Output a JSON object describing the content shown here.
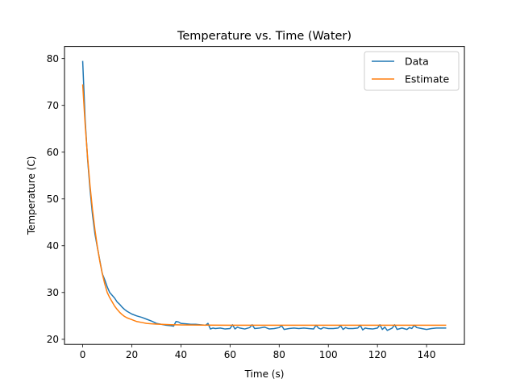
{
  "chart_data": {
    "type": "line",
    "title": "Temperature vs. Time (Water)",
    "xlabel": "Time (s)",
    "ylabel": "Temperature (C)",
    "xlim": [
      -7.4,
      155.4
    ],
    "ylim": [
      18.9,
      82.6
    ],
    "xticks": [
      0,
      20,
      40,
      60,
      80,
      100,
      120,
      140
    ],
    "yticks": [
      20,
      30,
      40,
      50,
      60,
      70,
      80
    ],
    "grid": false,
    "legend_position": "top-right",
    "series": [
      {
        "name": "Data",
        "color": "#1f77b4",
        "x": [
          0,
          1,
          2,
          3,
          4,
          5,
          6,
          7,
          8,
          9,
          10,
          11,
          12,
          13,
          14,
          15,
          16,
          17,
          18,
          19,
          20,
          22,
          24,
          26,
          28,
          30,
          32,
          34,
          36,
          37,
          38,
          39,
          40,
          42,
          44,
          46,
          48,
          50,
          51,
          52,
          53,
          54,
          56,
          58,
          60,
          61,
          62,
          63,
          64,
          66,
          68,
          69,
          70,
          72,
          74,
          76,
          78,
          80,
          81,
          82,
          84,
          86,
          88,
          90,
          92,
          94,
          95,
          96,
          97,
          98,
          100,
          102,
          104,
          105,
          106,
          107,
          108,
          110,
          112,
          113,
          114,
          115,
          116,
          118,
          120,
          121,
          122,
          123,
          124,
          126,
          127,
          128,
          130,
          132,
          133,
          134,
          135,
          136,
          138,
          140,
          142,
          144,
          146,
          148
        ],
        "y": [
          79.5,
          67.0,
          58.5,
          52.0,
          46.6,
          42.5,
          39.6,
          36.8,
          34.0,
          32.7,
          31.2,
          30.0,
          29.4,
          28.8,
          28.0,
          27.5,
          26.9,
          26.4,
          26.0,
          25.7,
          25.4,
          25.0,
          24.7,
          24.3,
          23.9,
          23.4,
          23.2,
          23.0,
          22.9,
          22.8,
          23.8,
          23.7,
          23.4,
          23.3,
          23.2,
          23.2,
          23.1,
          23.0,
          23.4,
          22.2,
          22.4,
          22.3,
          22.4,
          22.2,
          22.3,
          23.1,
          22.2,
          22.6,
          22.4,
          22.2,
          22.5,
          23.1,
          22.3,
          22.4,
          22.6,
          22.2,
          22.3,
          22.5,
          22.9,
          22.1,
          22.3,
          22.4,
          22.3,
          22.4,
          22.3,
          22.2,
          23.0,
          22.4,
          22.2,
          22.5,
          22.3,
          22.3,
          22.4,
          22.9,
          22.1,
          22.5,
          22.3,
          22.3,
          22.4,
          23.0,
          22.0,
          22.4,
          22.3,
          22.2,
          22.4,
          23.1,
          22.1,
          22.6,
          21.9,
          22.4,
          23.1,
          22.1,
          22.4,
          22.1,
          22.5,
          22.3,
          23.0,
          22.5,
          22.3,
          22.1,
          22.3,
          22.4,
          22.4,
          22.4
        ]
      },
      {
        "name": "Estimate",
        "color": "#ff7f0e",
        "x": [
          0,
          1,
          2,
          3,
          4,
          5,
          6,
          7,
          8,
          9,
          10,
          11,
          12,
          13,
          14,
          15,
          16,
          17,
          18,
          19,
          20,
          22,
          24,
          26,
          28,
          30,
          32,
          34,
          36,
          38,
          40,
          45,
          50,
          60,
          70,
          80,
          90,
          100,
          110,
          120,
          130,
          140,
          148
        ],
        "y": [
          74.5,
          66.0,
          58.9,
          52.8,
          47.7,
          43.4,
          39.7,
          36.6,
          34.0,
          31.8,
          30.0,
          28.9,
          28.0,
          27.1,
          26.4,
          25.8,
          25.3,
          24.9,
          24.6,
          24.4,
          24.2,
          23.8,
          23.6,
          23.4,
          23.3,
          23.25,
          23.2,
          23.15,
          23.12,
          23.1,
          23.08,
          23.05,
          23.03,
          23.0,
          23.0,
          23.0,
          23.0,
          23.0,
          23.0,
          23.0,
          23.0,
          23.0,
          23.0
        ]
      }
    ]
  }
}
